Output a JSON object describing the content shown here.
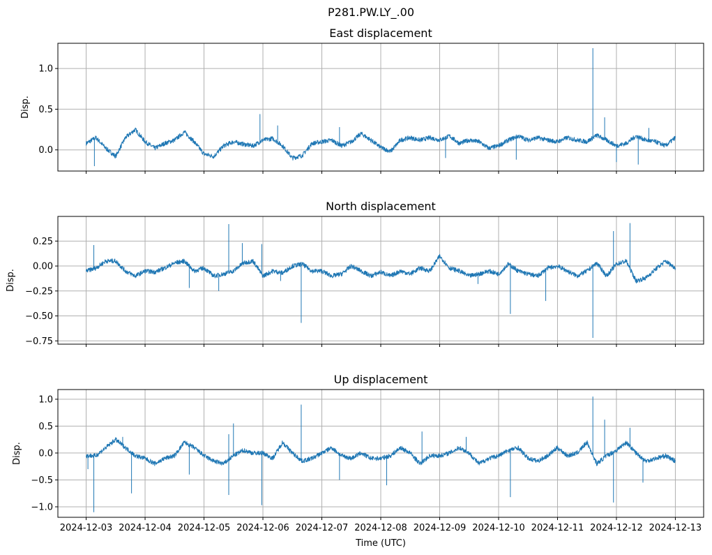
{
  "chart_data": {
    "type": "line",
    "title": "P281.PW.LY_.00",
    "xlabel": "Time (UTC)",
    "x_ticks": [
      "2024-12-03",
      "2024-12-04",
      "2024-12-05",
      "2024-12-06",
      "2024-12-07",
      "2024-12-08",
      "2024-12-09",
      "2024-12-10",
      "2024-12-11",
      "2024-12-12",
      "2024-12-13"
    ],
    "xlim": [
      -0.48,
      10.48
    ],
    "grid": true,
    "line_color": "#1f77b4",
    "panels": [
      {
        "title": "East displacement",
        "ylabel": "Disp.",
        "ylim": [
          -0.26,
          1.31
        ],
        "y_ticks": [
          "1.0",
          "0.5",
          "0.0"
        ],
        "y_tick_values": [
          1.0,
          0.5,
          0.0
        ],
        "values": [
          0.08,
          0.15,
          0.02,
          -0.08,
          0.15,
          0.25,
          0.1,
          0.02,
          0.08,
          0.12,
          0.22,
          0.1,
          -0.05,
          -0.08,
          0.05,
          0.1,
          0.07,
          0.05,
          0.12,
          0.14,
          0.05,
          -0.1,
          -0.07,
          0.08,
          0.1,
          0.12,
          0.05,
          0.1,
          0.2,
          0.12,
          0.03,
          -0.02,
          0.12,
          0.15,
          0.12,
          0.15,
          0.12,
          0.17,
          0.08,
          0.12,
          0.1,
          0.02,
          0.05,
          0.12,
          0.17,
          0.12,
          0.15,
          0.12,
          0.1,
          0.15,
          0.12,
          0.1,
          0.18,
          0.12,
          0.05,
          0.08,
          0.17,
          0.12,
          0.1,
          0.05,
          0.15
        ],
        "spikes": [
          [
            0.14,
            -0.2
          ],
          [
            2.95,
            0.44
          ],
          [
            3.25,
            0.3
          ],
          [
            4.3,
            0.28
          ],
          [
            6.1,
            -0.1
          ],
          [
            7.3,
            -0.12
          ],
          [
            8.6,
            1.25
          ],
          [
            8.8,
            0.4
          ],
          [
            9.0,
            -0.15
          ],
          [
            9.37,
            -0.18
          ],
          [
            9.55,
            0.27
          ]
        ]
      },
      {
        "title": "North displacement",
        "ylabel": "Disp.",
        "ylim": [
          -0.783,
          0.497
        ],
        "y_ticks": [
          "0.25",
          "0.00",
          "−0.25",
          "−0.50",
          "−0.75"
        ],
        "y_tick_values": [
          0.25,
          0.0,
          -0.25,
          -0.5,
          -0.75
        ],
        "values": [
          -0.05,
          -0.02,
          0.05,
          0.05,
          -0.05,
          -0.1,
          -0.05,
          -0.06,
          -0.02,
          0.03,
          0.05,
          -0.05,
          -0.02,
          -0.1,
          -0.08,
          -0.05,
          0.03,
          0.05,
          -0.1,
          -0.05,
          -0.07,
          0.0,
          0.02,
          -0.05,
          -0.05,
          -0.1,
          -0.08,
          0.0,
          -0.05,
          -0.1,
          -0.06,
          -0.1,
          -0.05,
          -0.08,
          -0.02,
          -0.05,
          0.1,
          -0.02,
          -0.05,
          -0.1,
          -0.08,
          -0.05,
          -0.08,
          0.02,
          -0.05,
          -0.08,
          -0.1,
          -0.02,
          0.0,
          -0.05,
          -0.1,
          -0.05,
          0.03,
          -0.1,
          0.02,
          0.05,
          -0.15,
          -0.12,
          -0.03,
          0.05,
          -0.02
        ],
        "spikes": [
          [
            0.13,
            0.21
          ],
          [
            1.75,
            -0.22
          ],
          [
            2.25,
            -0.25
          ],
          [
            2.42,
            0.42
          ],
          [
            2.65,
            0.23
          ],
          [
            2.98,
            0.22
          ],
          [
            3.3,
            -0.15
          ],
          [
            3.65,
            -0.57
          ],
          [
            6.65,
            -0.18
          ],
          [
            7.2,
            -0.48
          ],
          [
            7.8,
            -0.35
          ],
          [
            8.6,
            -0.72
          ],
          [
            8.95,
            0.35
          ],
          [
            9.23,
            0.43
          ],
          [
            9.35,
            -0.13
          ]
        ]
      },
      {
        "title": "Up displacement",
        "ylabel": "Disp.",
        "ylim": [
          -1.195,
          1.18
        ],
        "y_ticks": [
          "1.0",
          "0.5",
          "0.0",
          "−0.5",
          "−1.0"
        ],
        "y_tick_values": [
          1.0,
          0.5,
          0.0,
          -0.5,
          -1.0
        ],
        "values": [
          -0.05,
          -0.05,
          0.1,
          0.25,
          0.1,
          -0.05,
          -0.1,
          -0.2,
          -0.1,
          -0.05,
          0.2,
          0.1,
          -0.05,
          -0.15,
          -0.2,
          -0.05,
          0.05,
          0.0,
          0.0,
          -0.1,
          0.2,
          0.0,
          -0.15,
          -0.1,
          0.0,
          0.1,
          -0.05,
          -0.1,
          0.0,
          -0.1,
          -0.1,
          -0.05,
          0.1,
          0.0,
          -0.2,
          -0.05,
          -0.05,
          0.0,
          0.1,
          0.0,
          -0.2,
          -0.1,
          -0.05,
          0.05,
          0.1,
          -0.1,
          -0.15,
          -0.05,
          0.1,
          -0.05,
          0.0,
          0.2,
          -0.2,
          -0.05,
          0.05,
          0.2,
          0.0,
          -0.15,
          -0.1,
          -0.05,
          -0.15
        ],
        "spikes": [
          [
            0.03,
            -0.3
          ],
          [
            0.13,
            -1.1
          ],
          [
            0.62,
            0.3
          ],
          [
            0.77,
            -0.75
          ],
          [
            1.75,
            -0.4
          ],
          [
            2.42,
            0.35
          ],
          [
            2.5,
            0.55
          ],
          [
            2.42,
            -0.78
          ],
          [
            2.98,
            -0.97
          ],
          [
            3.65,
            0.9
          ],
          [
            4.3,
            -0.5
          ],
          [
            5.1,
            -0.6
          ],
          [
            5.7,
            0.4
          ],
          [
            6.45,
            0.3
          ],
          [
            7.2,
            -0.82
          ],
          [
            8.6,
            1.05
          ],
          [
            8.8,
            0.62
          ],
          [
            8.95,
            -0.92
          ],
          [
            9.23,
            0.47
          ],
          [
            9.45,
            -0.55
          ]
        ]
      }
    ]
  }
}
